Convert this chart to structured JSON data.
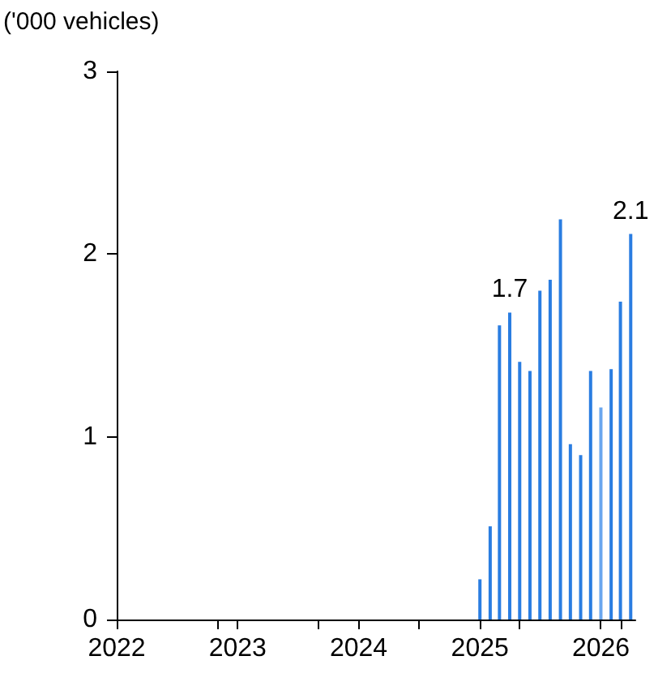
{
  "chart_data": {
    "type": "bar",
    "ylabel": "('000 vehicles)",
    "x": [
      "2025-01",
      "2025-02",
      "2025-03",
      "2025-04",
      "2025-05",
      "2025-06",
      "2025-07",
      "2025-08",
      "2025-09",
      "2025-10",
      "2025-11",
      "2025-12",
      "2026-01",
      "2026-02",
      "2026-03",
      "2026-04"
    ],
    "values": [
      0.22,
      0.51,
      1.61,
      1.68,
      1.41,
      1.36,
      1.8,
      1.86,
      2.19,
      0.96,
      0.9,
      1.36,
      1.16,
      1.37,
      1.74,
      2.11
    ],
    "value_labels": [
      null,
      null,
      null,
      "1.7",
      null,
      null,
      null,
      null,
      null,
      null,
      null,
      null,
      null,
      null,
      null,
      "2.1"
    ],
    "colors": [
      "#2a7de1",
      "#2a7de1",
      "#2a7de1",
      "#2a7de1",
      "#2a7de1",
      "#2a7de1",
      "#2a7de1",
      "#2a7de1",
      "#2a7de1",
      "#2a7de1",
      "#2a7de1",
      "#2a7de1",
      "#6aa6ee",
      "#2a7de1",
      "#2a7de1",
      "#2a7de1"
    ],
    "xlim": [
      "2022-01",
      "2026-04-15"
    ],
    "xticks": [
      {
        "value": "2022-01",
        "label": "2022"
      },
      {
        "value": "2023-01",
        "label": "2023"
      },
      {
        "value": "2024-01",
        "label": "2024"
      },
      {
        "value": "2025-01",
        "label": "2025"
      },
      {
        "value": "2026-01",
        "label": "2026"
      },
      {
        "value": "2022-11",
        "label": null
      },
      {
        "value": "2023-09",
        "label": null
      },
      {
        "value": "2024-07",
        "label": null
      },
      {
        "value": "2025-05",
        "label": null
      },
      {
        "value": "2026-03",
        "label": null
      }
    ],
    "ylim": [
      0,
      3
    ],
    "yticks": [
      0,
      1,
      2,
      3
    ]
  }
}
